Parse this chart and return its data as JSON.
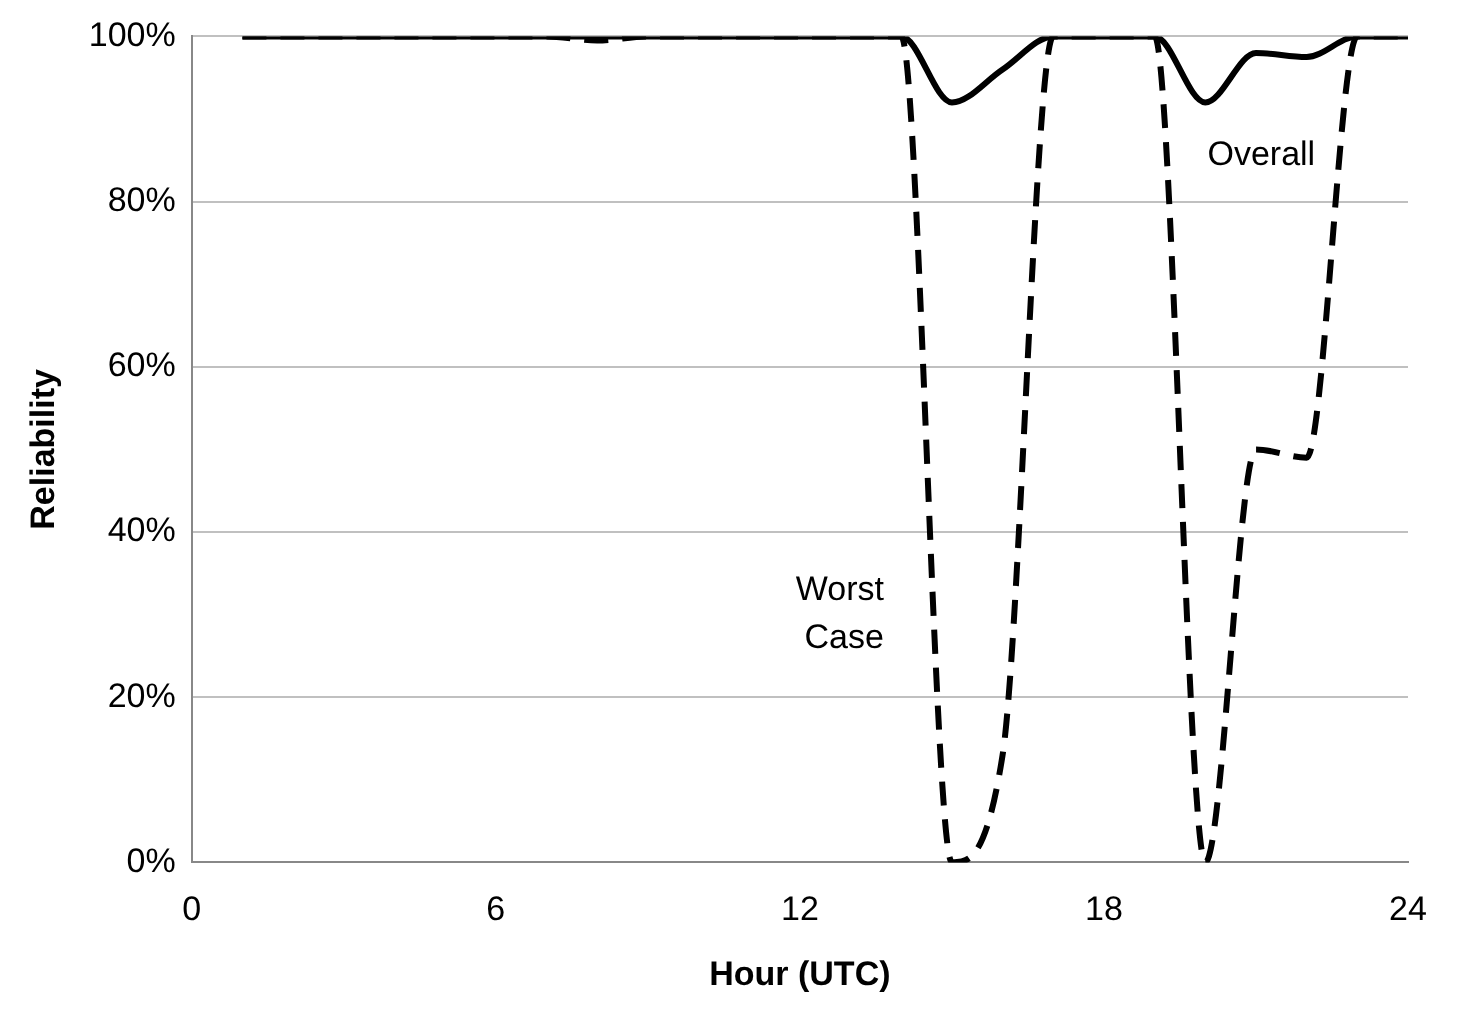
{
  "chart_data": {
    "type": "line",
    "xlabel": "Hour (UTC)",
    "ylabel": "Reliability",
    "x": [
      1,
      2,
      3,
      4,
      5,
      6,
      7,
      8,
      9,
      10,
      11,
      12,
      13,
      14,
      15,
      16,
      17,
      18,
      19,
      20,
      21,
      22,
      23,
      24
    ],
    "series": [
      {
        "name": "Overall",
        "color": "#000000",
        "line_style": "solid",
        "values": [
          100,
          100,
          100,
          100,
          100,
          100,
          100,
          100,
          100,
          100,
          100,
          100,
          100,
          100,
          92,
          96,
          100,
          100,
          100,
          92,
          98,
          97.5,
          100,
          100
        ]
      },
      {
        "name": "Worst Case",
        "color": "#000000",
        "line_style": "dashed",
        "values": [
          100,
          100,
          100,
          100,
          100,
          100,
          100,
          99.5,
          100,
          100,
          100,
          100,
          100,
          100,
          0,
          13,
          100,
          100,
          100,
          0,
          50,
          49,
          100,
          100
        ]
      }
    ],
    "xlim": [
      0,
      24
    ],
    "xticks": [
      0,
      6,
      12,
      18,
      24
    ],
    "ylim": [
      0,
      100
    ],
    "yticks": [
      {
        "value": 0,
        "label": "0%"
      },
      {
        "value": 20,
        "label": "20%"
      },
      {
        "value": 40,
        "label": "40%"
      },
      {
        "value": 60,
        "label": "60%"
      },
      {
        "value": 80,
        "label": "80%"
      },
      {
        "value": 100,
        "label": "100%"
      }
    ],
    "grid": "y",
    "legend": false
  }
}
